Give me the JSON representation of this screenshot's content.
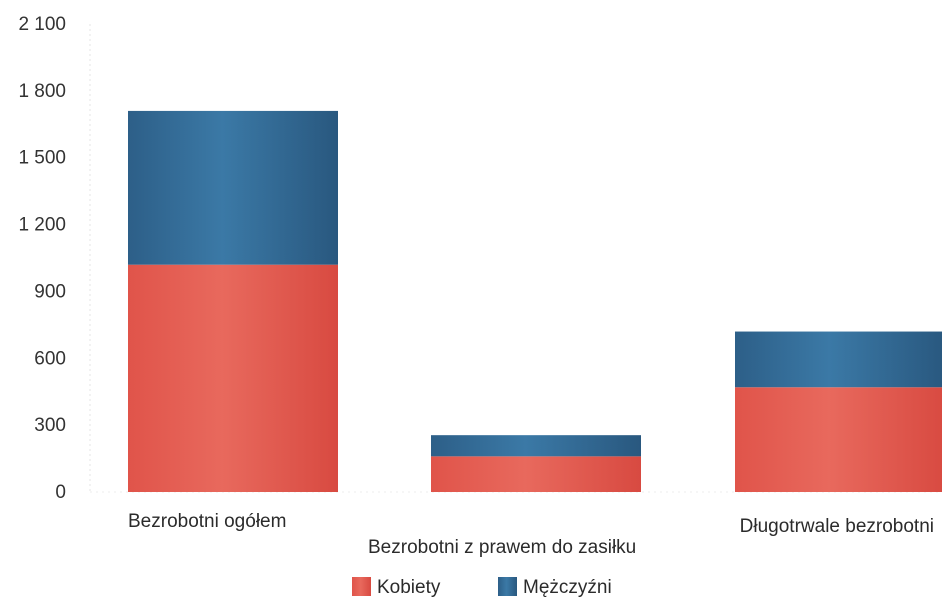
{
  "chart_data": {
    "type": "bar",
    "stacked": true,
    "categories": [
      "Bezrobotni ogółem",
      "Bezrobotni z prawem do zasiłku",
      "Długotrwale bezrobotni"
    ],
    "series": [
      {
        "name": "Kobiety",
        "values": [
          1020,
          160,
          470
        ],
        "color": "#e2544a"
      },
      {
        "name": "Mężczyźni",
        "values": [
          690,
          95,
          250
        ],
        "color": "#2f6690"
      }
    ],
    "ylim": [
      0,
      2100
    ],
    "yticks": [
      0,
      300,
      600,
      900,
      1200,
      1500,
      1800,
      2100
    ],
    "ytick_labels": [
      "0",
      "300",
      "600",
      "900",
      "1 200",
      "1 500",
      "1 800",
      "2 100"
    ],
    "legend_position": "bottom",
    "grid": false
  }
}
